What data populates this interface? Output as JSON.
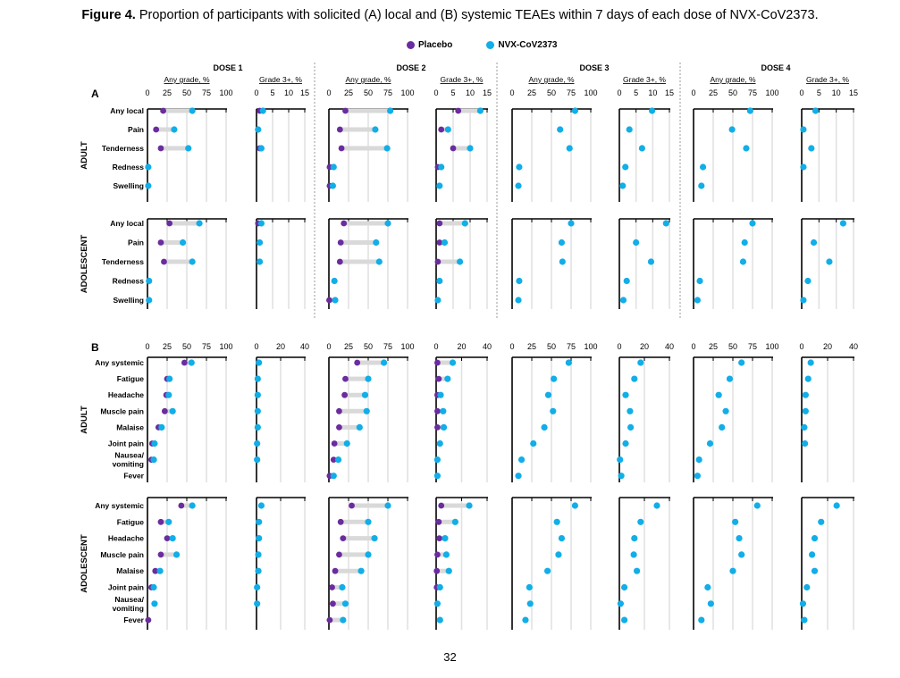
{
  "title": {
    "bold": "Figure 4.",
    "rest": " Proportion of participants with solicited (A) local and (B) systemic TEAEs within 7 days of each dose of NVX-CoV2373."
  },
  "legend": [
    {
      "label": "Placebo",
      "color": "#6a2c9e"
    },
    {
      "label": "NVX-CoV2373",
      "color": "#11aee8"
    }
  ],
  "page_number": "32",
  "chart_data": {
    "type": "dumbbell",
    "doses": [
      "DOSE 1",
      "DOSE 2",
      "DOSE 3",
      "DOSE 4"
    ],
    "subheaders": [
      "Any grade, %",
      "Grade 3+, %"
    ],
    "series": [
      "Placebo",
      "NVX-CoV2373"
    ],
    "panels": [
      {
        "label": "A",
        "ticks_any": [
          0,
          25,
          50,
          75,
          100
        ],
        "ticks_g3": [
          0,
          5,
          10,
          15
        ],
        "groups": [
          {
            "name": "ADULT",
            "categories": [
              "Any local",
              "Pain",
              "Tenderness",
              "Redness",
              "Swelling"
            ],
            "doses": [
              {
                "any": {
                  "placebo": [
                    20,
                    11,
                    17,
                    null,
                    null
                  ],
                  "nvx": [
                    57,
                    34,
                    52,
                    1,
                    1
                  ]
                },
                "g3": {
                  "placebo": [
                    1,
                    null,
                    1,
                    null,
                    null
                  ],
                  "nvx": [
                    2,
                    0.5,
                    1.5,
                    null,
                    null
                  ]
                }
              },
              {
                "any": {
                  "placebo": [
                    21,
                    14,
                    16,
                    1,
                    1
                  ],
                  "nvx": [
                    78,
                    59,
                    74,
                    6,
                    5
                  ]
                },
                "g3": {
                  "placebo": [
                    6.5,
                    1.5,
                    5,
                    0.5,
                    null
                  ],
                  "nvx": [
                    13,
                    3.5,
                    10,
                    1.5,
                    1
                  ]
                }
              },
              {
                "any": {
                  "placebo": [
                    null,
                    null,
                    null,
                    null,
                    null
                  ],
                  "nvx": [
                    80,
                    61,
                    73,
                    9,
                    8
                  ]
                },
                "g3": {
                  "placebo": [
                    null,
                    null,
                    null,
                    null,
                    null
                  ],
                  "nvx": [
                    9.8,
                    3,
                    6.8,
                    1.8,
                    1
                  ]
                }
              },
              {
                "any": {
                  "placebo": [
                    null,
                    null,
                    null,
                    null,
                    null
                  ],
                  "nvx": [
                    72,
                    49,
                    67,
                    12,
                    10
                  ]
                },
                "g3": {
                  "placebo": [
                    null,
                    null,
                    null,
                    null,
                    null
                  ],
                  "nvx": [
                    4,
                    0.5,
                    2.8,
                    0.5,
                    null
                  ]
                }
              }
            ]
          },
          {
            "name": "ADOLESCENT",
            "categories": [
              "Any local",
              "Pain",
              "Tenderness",
              "Redness",
              "Swelling"
            ],
            "doses": [
              {
                "any": {
                  "placebo": [
                    28,
                    17,
                    21,
                    null,
                    null
                  ],
                  "nvx": [
                    66,
                    45,
                    57,
                    2,
                    2
                  ]
                },
                "g3": {
                  "placebo": [
                    0.5,
                    null,
                    null,
                    null,
                    null
                  ],
                  "nvx": [
                    1.5,
                    1,
                    1,
                    null,
                    null
                  ]
                }
              },
              {
                "any": {
                  "placebo": [
                    19,
                    15,
                    14,
                    null,
                    0.5
                  ],
                  "nvx": [
                    75,
                    60,
                    64,
                    7,
                    8
                  ]
                },
                "g3": {
                  "placebo": [
                    1,
                    1,
                    0.5,
                    null,
                    null
                  ],
                  "nvx": [
                    8.5,
                    2.5,
                    7,
                    1,
                    0.5
                  ]
                }
              },
              {
                "any": {
                  "placebo": [
                    null,
                    null,
                    null,
                    null,
                    null
                  ],
                  "nvx": [
                    75,
                    63,
                    64,
                    9,
                    8
                  ]
                },
                "g3": {
                  "placebo": [
                    null,
                    null,
                    null,
                    null,
                    null
                  ],
                  "nvx": [
                    14,
                    5,
                    9.5,
                    2.2,
                    1.2
                  ]
                }
              },
              {
                "any": {
                  "placebo": [
                    null,
                    null,
                    null,
                    null,
                    null
                  ],
                  "nvx": [
                    75,
                    65,
                    63,
                    8,
                    5
                  ]
                },
                "g3": {
                  "placebo": [
                    null,
                    null,
                    null,
                    null,
                    null
                  ],
                  "nvx": [
                    12,
                    3.5,
                    8,
                    1.8,
                    0.5
                  ]
                }
              }
            ]
          }
        ]
      },
      {
        "label": "B",
        "ticks_any": [
          0,
          25,
          50,
          75,
          100
        ],
        "ticks_g3": [
          0,
          20,
          40
        ],
        "groups": [
          {
            "name": "ADULT",
            "categories": [
              "Any systemic",
              "Fatigue",
              "Headache",
              "Muscle pain",
              "Malaise",
              "Joint pain",
              "Nausea/\nvomiting",
              "Fever"
            ],
            "doses": [
              {
                "any": {
                  "placebo": [
                    47,
                    25,
                    24,
                    22,
                    14,
                    6,
                    5,
                    null
                  ],
                  "nvx": [
                    56,
                    28,
                    27,
                    32,
                    18,
                    9,
                    8,
                    null
                  ]
                },
                "g3": {
                  "placebo": [
                    null,
                    null,
                    null,
                    null,
                    null,
                    null,
                    null,
                    null
                  ],
                  "nvx": [
                    2,
                    1,
                    1,
                    1,
                    1,
                    0.5,
                    0.5,
                    null
                  ]
                }
              },
              {
                "any": {
                  "placebo": [
                    36,
                    21,
                    20,
                    13,
                    13,
                    7,
                    6,
                    1
                  ],
                  "nvx": [
                    70,
                    50,
                    46,
                    48,
                    39,
                    23,
                    12,
                    6
                  ]
                },
                "g3": {
                  "placebo": [
                    1,
                    2,
                    1,
                    1,
                    1,
                    null,
                    null,
                    null
                  ],
                  "nvx": [
                    13,
                    9,
                    3.5,
                    5.5,
                    6,
                    3,
                    1,
                    1
                  ]
                }
              },
              {
                "any": {
                  "placebo": [
                    null,
                    null,
                    null,
                    null,
                    null,
                    null,
                    null,
                    null
                  ],
                  "nvx": [
                    72,
                    53,
                    46,
                    52,
                    41,
                    27,
                    12,
                    8
                  ]
                },
                "g3": {
                  "placebo": [
                    null,
                    null,
                    null,
                    null,
                    null,
                    null,
                    null,
                    null
                  ],
                  "nvx": [
                    17,
                    12,
                    5,
                    8.5,
                    9,
                    5,
                    0.5,
                    1.5
                  ]
                }
              },
              {
                "any": {
                  "placebo": [
                    null,
                    null,
                    null,
                    null,
                    null,
                    null,
                    null,
                    null
                  ],
                  "nvx": [
                    61,
                    46,
                    32,
                    41,
                    36,
                    21,
                    7,
                    5
                  ]
                },
                "g3": {
                  "placebo": [
                    null,
                    null,
                    null,
                    null,
                    null,
                    null,
                    null,
                    null
                  ],
                  "nvx": [
                    7,
                    5,
                    3,
                    3,
                    2,
                    2.5,
                    null,
                    null
                  ]
                }
              }
            ]
          },
          {
            "name": "ADOLESCENT",
            "categories": [
              "Any systemic",
              "Fatigue",
              "Headache",
              "Muscle pain",
              "Malaise",
              "Joint pain",
              "Nausea/\nvomiting",
              "Fever"
            ],
            "doses": [
              {
                "any": {
                  "placebo": [
                    43,
                    17,
                    25,
                    17,
                    10,
                    5,
                    null,
                    1
                  ],
                  "nvx": [
                    57,
                    27,
                    32,
                    37,
                    16,
                    8,
                    9,
                    null
                  ]
                },
                "g3": {
                  "placebo": [
                    null,
                    null,
                    null,
                    null,
                    null,
                    null,
                    null,
                    null
                  ],
                  "nvx": [
                    4,
                    2,
                    2,
                    1.5,
                    1.5,
                    0.5,
                    0.5,
                    null
                  ]
                }
              },
              {
                "any": {
                  "placebo": [
                    29,
                    15,
                    18,
                    13,
                    8,
                    4,
                    5,
                    1
                  ],
                  "nvx": [
                    75,
                    50,
                    58,
                    50,
                    41,
                    17,
                    21,
                    18
                  ]
                },
                "g3": {
                  "placebo": [
                    4,
                    2,
                    2.5,
                    1,
                    0.5,
                    0.5,
                    null,
                    null
                  ],
                  "nvx": [
                    26,
                    15,
                    7,
                    8,
                    10,
                    3,
                    1,
                    3
                  ]
                }
              },
              {
                "any": {
                  "placebo": [
                    null,
                    null,
                    null,
                    null,
                    null,
                    null,
                    null,
                    null
                  ],
                  "nvx": [
                    80,
                    57,
                    63,
                    59,
                    45,
                    22,
                    23,
                    17
                  ]
                },
                "g3": {
                  "placebo": [
                    null,
                    null,
                    null,
                    null,
                    null,
                    null,
                    null,
                    null
                  ],
                  "nvx": [
                    30,
                    17,
                    12,
                    11.5,
                    14,
                    4,
                    1,
                    4
                  ]
                }
              },
              {
                "any": {
                  "placebo": [
                    null,
                    null,
                    null,
                    null,
                    null,
                    null,
                    null,
                    null
                  ],
                  "nvx": [
                    81,
                    53,
                    58,
                    61,
                    50,
                    18,
                    22,
                    10
                  ]
                },
                "g3": {
                  "placebo": [
                    null,
                    null,
                    null,
                    null,
                    null,
                    null,
                    null,
                    null
                  ],
                  "nvx": [
                    27,
                    15,
                    10,
                    8,
                    10,
                    4,
                    1,
                    2
                  ]
                }
              }
            ]
          }
        ]
      }
    ]
  }
}
